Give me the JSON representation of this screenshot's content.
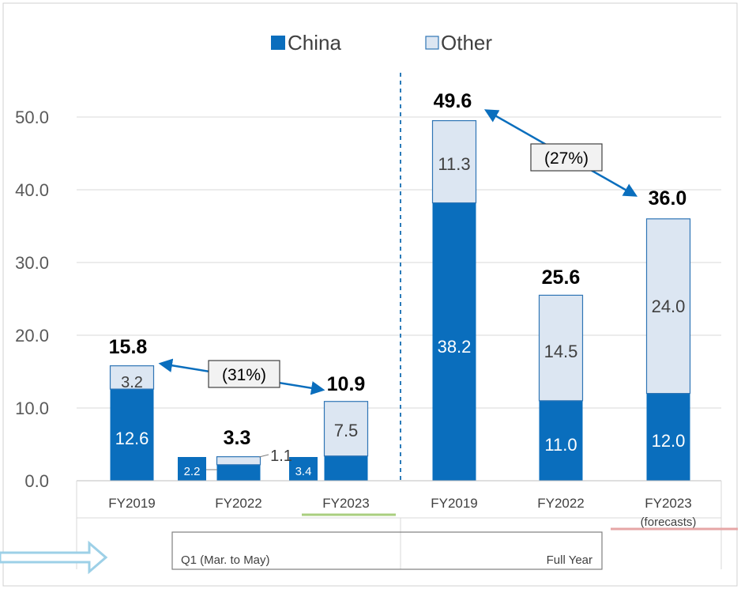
{
  "chart_data": {
    "type": "bar",
    "stacked": true,
    "categories": [
      "FY2019",
      "FY2022",
      "FY2023",
      "FY2019",
      "FY2022",
      "FY2023"
    ],
    "category_sublabels": [
      "",
      "",
      "",
      "",
      "",
      "(forecasts)"
    ],
    "groups": [
      {
        "label": "Q1 (Mar. to May)",
        "categories": [
          0,
          1,
          2
        ]
      },
      {
        "label": "Full Year",
        "categories": [
          3,
          4,
          5
        ]
      }
    ],
    "series": [
      {
        "name": "China",
        "color": "#0a6ebd",
        "values": [
          12.6,
          2.2,
          3.4,
          38.2,
          11.0,
          12.0
        ],
        "labels": [
          "12.6",
          "2.2",
          "3.4",
          "38.2",
          "11.0",
          "12.0"
        ]
      },
      {
        "name": "Other",
        "color": "#dce6f2",
        "values": [
          3.2,
          1.1,
          7.5,
          11.3,
          14.5,
          24.0
        ],
        "labels": [
          "3.2",
          "1.1",
          "7.5",
          "11.3",
          "14.5",
          "24.0"
        ]
      }
    ],
    "totals": [
      "15.8",
      "3.3",
      "10.9",
      "49.6",
      "25.6",
      "36.0"
    ],
    "y_ticks": [
      "0.0",
      "10.0",
      "20.0",
      "30.0",
      "40.0",
      "50.0"
    ],
    "ylim": [
      0,
      50
    ],
    "grid": true,
    "legend_position": "top-center",
    "annotations": [
      {
        "text": "(31%)",
        "from": 0,
        "to": 2
      },
      {
        "text": "(27%)",
        "from": 3,
        "to": 5
      }
    ]
  }
}
